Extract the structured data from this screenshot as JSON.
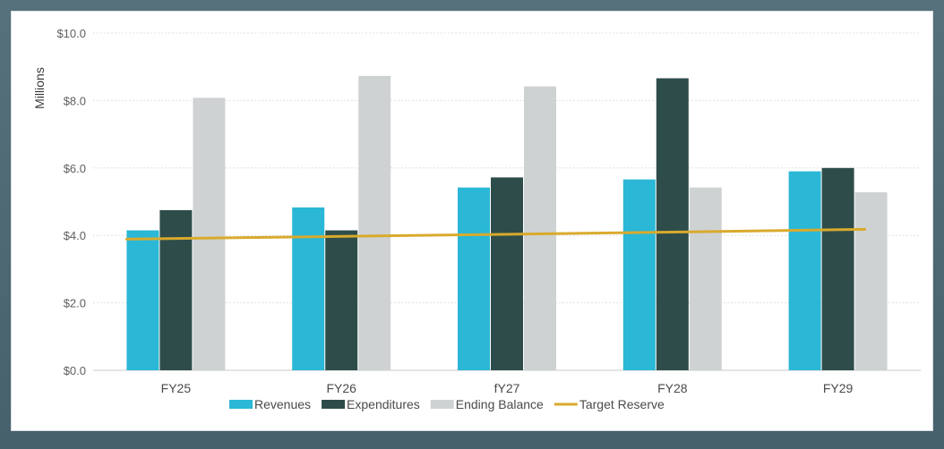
{
  "chart_data": {
    "type": "bar",
    "title": "",
    "xlabel": "",
    "ylabel": "Millions",
    "categories": [
      "FY25",
      "FY26",
      "fY27",
      "FY28",
      "FY29"
    ],
    "ylim": [
      0,
      10
    ],
    "yticks": [
      0,
      2,
      4,
      6,
      8,
      10
    ],
    "ytick_labels": [
      "$0.0",
      "$2.0",
      "$4.0",
      "$6.0",
      "$8.0",
      "$10.0"
    ],
    "grid": true,
    "legend_position": "bottom",
    "series": [
      {
        "name": "Revenues",
        "kind": "bar",
        "color": "#2bb7d6",
        "values": [
          4.15,
          4.83,
          5.42,
          5.66,
          5.9
        ]
      },
      {
        "name": "Expenditures",
        "kind": "bar",
        "color": "#2e4d4a",
        "values": [
          4.75,
          4.15,
          5.72,
          8.66,
          6.0
        ]
      },
      {
        "name": "Ending Balance",
        "kind": "bar",
        "color": "#cfd2d3",
        "values": [
          8.08,
          8.73,
          8.42,
          5.42,
          5.28
        ]
      },
      {
        "name": "Target Reserve",
        "kind": "line",
        "color": "#d9aa2c",
        "values": [
          3.89,
          3.96,
          4.03,
          4.1,
          4.18
        ]
      }
    ]
  }
}
